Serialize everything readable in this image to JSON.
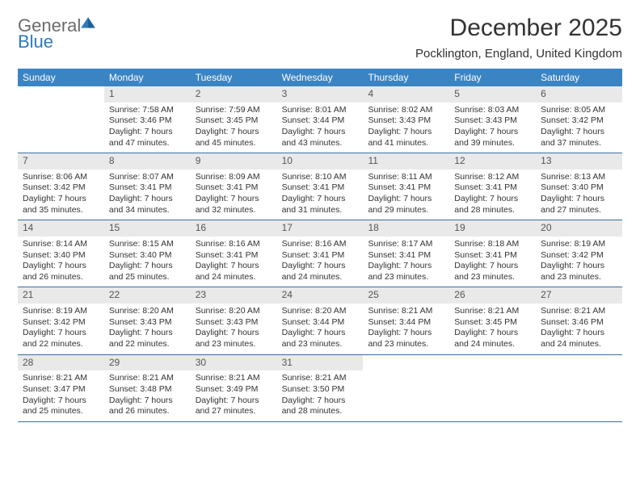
{
  "logo": {
    "word1": "General",
    "word2": "Blue"
  },
  "title": "December 2025",
  "subtitle": "Pocklington, England, United Kingdom",
  "colors": {
    "header_bg": "#3b84c4",
    "header_text": "#ffffff",
    "daynum_bg": "#e9e9e9",
    "daynum_text": "#555555",
    "rule": "#3b6fa0",
    "body_text": "#333333",
    "logo_gray": "#6b6b6b",
    "logo_blue": "#2b7bbf"
  },
  "weekdays": [
    "Sunday",
    "Monday",
    "Tuesday",
    "Wednesday",
    "Thursday",
    "Friday",
    "Saturday"
  ],
  "weeks": [
    [
      null,
      {
        "n": "1",
        "sr": "Sunrise: 7:58 AM",
        "ss": "Sunset: 3:46 PM",
        "d1": "Daylight: 7 hours",
        "d2": "and 47 minutes."
      },
      {
        "n": "2",
        "sr": "Sunrise: 7:59 AM",
        "ss": "Sunset: 3:45 PM",
        "d1": "Daylight: 7 hours",
        "d2": "and 45 minutes."
      },
      {
        "n": "3",
        "sr": "Sunrise: 8:01 AM",
        "ss": "Sunset: 3:44 PM",
        "d1": "Daylight: 7 hours",
        "d2": "and 43 minutes."
      },
      {
        "n": "4",
        "sr": "Sunrise: 8:02 AM",
        "ss": "Sunset: 3:43 PM",
        "d1": "Daylight: 7 hours",
        "d2": "and 41 minutes."
      },
      {
        "n": "5",
        "sr": "Sunrise: 8:03 AM",
        "ss": "Sunset: 3:43 PM",
        "d1": "Daylight: 7 hours",
        "d2": "and 39 minutes."
      },
      {
        "n": "6",
        "sr": "Sunrise: 8:05 AM",
        "ss": "Sunset: 3:42 PM",
        "d1": "Daylight: 7 hours",
        "d2": "and 37 minutes."
      }
    ],
    [
      {
        "n": "7",
        "sr": "Sunrise: 8:06 AM",
        "ss": "Sunset: 3:42 PM",
        "d1": "Daylight: 7 hours",
        "d2": "and 35 minutes."
      },
      {
        "n": "8",
        "sr": "Sunrise: 8:07 AM",
        "ss": "Sunset: 3:41 PM",
        "d1": "Daylight: 7 hours",
        "d2": "and 34 minutes."
      },
      {
        "n": "9",
        "sr": "Sunrise: 8:09 AM",
        "ss": "Sunset: 3:41 PM",
        "d1": "Daylight: 7 hours",
        "d2": "and 32 minutes."
      },
      {
        "n": "10",
        "sr": "Sunrise: 8:10 AM",
        "ss": "Sunset: 3:41 PM",
        "d1": "Daylight: 7 hours",
        "d2": "and 31 minutes."
      },
      {
        "n": "11",
        "sr": "Sunrise: 8:11 AM",
        "ss": "Sunset: 3:41 PM",
        "d1": "Daylight: 7 hours",
        "d2": "and 29 minutes."
      },
      {
        "n": "12",
        "sr": "Sunrise: 8:12 AM",
        "ss": "Sunset: 3:41 PM",
        "d1": "Daylight: 7 hours",
        "d2": "and 28 minutes."
      },
      {
        "n": "13",
        "sr": "Sunrise: 8:13 AM",
        "ss": "Sunset: 3:40 PM",
        "d1": "Daylight: 7 hours",
        "d2": "and 27 minutes."
      }
    ],
    [
      {
        "n": "14",
        "sr": "Sunrise: 8:14 AM",
        "ss": "Sunset: 3:40 PM",
        "d1": "Daylight: 7 hours",
        "d2": "and 26 minutes."
      },
      {
        "n": "15",
        "sr": "Sunrise: 8:15 AM",
        "ss": "Sunset: 3:40 PM",
        "d1": "Daylight: 7 hours",
        "d2": "and 25 minutes."
      },
      {
        "n": "16",
        "sr": "Sunrise: 8:16 AM",
        "ss": "Sunset: 3:41 PM",
        "d1": "Daylight: 7 hours",
        "d2": "and 24 minutes."
      },
      {
        "n": "17",
        "sr": "Sunrise: 8:16 AM",
        "ss": "Sunset: 3:41 PM",
        "d1": "Daylight: 7 hours",
        "d2": "and 24 minutes."
      },
      {
        "n": "18",
        "sr": "Sunrise: 8:17 AM",
        "ss": "Sunset: 3:41 PM",
        "d1": "Daylight: 7 hours",
        "d2": "and 23 minutes."
      },
      {
        "n": "19",
        "sr": "Sunrise: 8:18 AM",
        "ss": "Sunset: 3:41 PM",
        "d1": "Daylight: 7 hours",
        "d2": "and 23 minutes."
      },
      {
        "n": "20",
        "sr": "Sunrise: 8:19 AM",
        "ss": "Sunset: 3:42 PM",
        "d1": "Daylight: 7 hours",
        "d2": "and 23 minutes."
      }
    ],
    [
      {
        "n": "21",
        "sr": "Sunrise: 8:19 AM",
        "ss": "Sunset: 3:42 PM",
        "d1": "Daylight: 7 hours",
        "d2": "and 22 minutes."
      },
      {
        "n": "22",
        "sr": "Sunrise: 8:20 AM",
        "ss": "Sunset: 3:43 PM",
        "d1": "Daylight: 7 hours",
        "d2": "and 22 minutes."
      },
      {
        "n": "23",
        "sr": "Sunrise: 8:20 AM",
        "ss": "Sunset: 3:43 PM",
        "d1": "Daylight: 7 hours",
        "d2": "and 23 minutes."
      },
      {
        "n": "24",
        "sr": "Sunrise: 8:20 AM",
        "ss": "Sunset: 3:44 PM",
        "d1": "Daylight: 7 hours",
        "d2": "and 23 minutes."
      },
      {
        "n": "25",
        "sr": "Sunrise: 8:21 AM",
        "ss": "Sunset: 3:44 PM",
        "d1": "Daylight: 7 hours",
        "d2": "and 23 minutes."
      },
      {
        "n": "26",
        "sr": "Sunrise: 8:21 AM",
        "ss": "Sunset: 3:45 PM",
        "d1": "Daylight: 7 hours",
        "d2": "and 24 minutes."
      },
      {
        "n": "27",
        "sr": "Sunrise: 8:21 AM",
        "ss": "Sunset: 3:46 PM",
        "d1": "Daylight: 7 hours",
        "d2": "and 24 minutes."
      }
    ],
    [
      {
        "n": "28",
        "sr": "Sunrise: 8:21 AM",
        "ss": "Sunset: 3:47 PM",
        "d1": "Daylight: 7 hours",
        "d2": "and 25 minutes."
      },
      {
        "n": "29",
        "sr": "Sunrise: 8:21 AM",
        "ss": "Sunset: 3:48 PM",
        "d1": "Daylight: 7 hours",
        "d2": "and 26 minutes."
      },
      {
        "n": "30",
        "sr": "Sunrise: 8:21 AM",
        "ss": "Sunset: 3:49 PM",
        "d1": "Daylight: 7 hours",
        "d2": "and 27 minutes."
      },
      {
        "n": "31",
        "sr": "Sunrise: 8:21 AM",
        "ss": "Sunset: 3:50 PM",
        "d1": "Daylight: 7 hours",
        "d2": "and 28 minutes."
      },
      null,
      null,
      null
    ]
  ]
}
